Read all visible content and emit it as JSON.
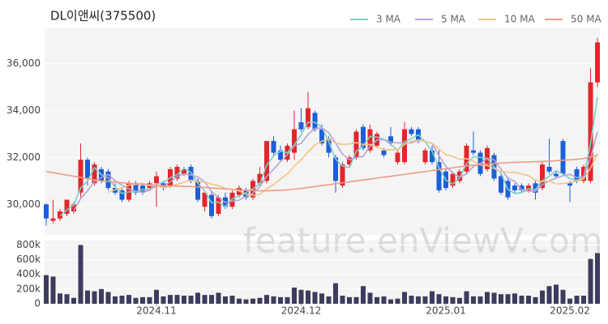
{
  "chart_data": [
    {
      "type": "candlestick",
      "title": "DL이앤씨(375500)",
      "watermark": "feature.enViewV.com",
      "up_color": "#e3262c",
      "down_color": "#1c5fd8",
      "open": [
        30000,
        29300,
        29400,
        29600,
        29700,
        30500,
        31900,
        30900,
        31500,
        31400,
        30700,
        30600,
        30200,
        30900,
        30800,
        30700,
        30900,
        30900,
        30800,
        31100,
        31300,
        31600,
        31000,
        29900,
        30400,
        29600,
        30300,
        29900,
        30400,
        30600,
        30300,
        30900,
        31000,
        32700,
        32300,
        31900,
        32200,
        33500,
        33300,
        33900,
        33200,
        32800,
        32000,
        30800,
        31700,
        32000,
        33300,
        32300,
        32500,
        32300,
        32900,
        31800,
        31800,
        33200,
        33200,
        31800,
        32300,
        31800,
        31400,
        30800,
        31000,
        31400,
        32300,
        32200,
        31500,
        32100,
        31200,
        31000,
        30800,
        30800,
        30600,
        30900,
        30700,
        31600,
        31300,
        32700,
        30900,
        31500,
        31000,
        31000,
        35200
      ],
      "high": [
        30050,
        30200,
        29800,
        30200,
        30100,
        32600,
        32000,
        31800,
        31600,
        31500,
        30900,
        30700,
        31000,
        31000,
        30900,
        31000,
        31400,
        31000,
        31600,
        31700,
        31600,
        31700,
        31100,
        30500,
        30600,
        30400,
        30500,
        30600,
        30800,
        30700,
        31100,
        31600,
        32700,
        32900,
        32500,
        32600,
        34000,
        34100,
        34800,
        34000,
        33400,
        32900,
        32100,
        31800,
        32100,
        33200,
        33400,
        33400,
        33100,
        32400,
        33300,
        32300,
        33500,
        33300,
        33300,
        32400,
        32500,
        32300,
        31500,
        31400,
        31500,
        32600,
        33100,
        32300,
        32500,
        32200,
        31300,
        31100,
        30900,
        30900,
        30900,
        31000,
        31800,
        32800,
        31400,
        32800,
        31000,
        31600,
        31700,
        35800,
        37100
      ],
      "low": [
        29100,
        29200,
        29300,
        29500,
        29600,
        30300,
        30800,
        30800,
        30900,
        30600,
        30400,
        30100,
        30100,
        30400,
        30400,
        30600,
        29900,
        30600,
        30700,
        31000,
        31200,
        30900,
        30100,
        29700,
        29400,
        29500,
        29800,
        29800,
        30300,
        30200,
        30200,
        30800,
        30900,
        32100,
        31800,
        31800,
        31900,
        33100,
        33200,
        33100,
        32500,
        32000,
        30500,
        30700,
        31600,
        31900,
        32300,
        32200,
        32400,
        32000,
        32500,
        31700,
        31700,
        32900,
        32600,
        31700,
        31700,
        30500,
        30600,
        30700,
        30900,
        31300,
        32100,
        31200,
        31400,
        31000,
        30400,
        30200,
        30500,
        30500,
        30500,
        30200,
        30600,
        31300,
        31100,
        31200,
        30100,
        30900,
        30900,
        30900,
        35000
      ],
      "close": [
        29400,
        29400,
        29700,
        30200,
        30000,
        31900,
        31100,
        31700,
        31000,
        30700,
        30500,
        30200,
        30900,
        30500,
        30500,
        30900,
        31200,
        30700,
        31500,
        31600,
        31500,
        31000,
        30200,
        30500,
        29500,
        30300,
        29900,
        30500,
        30700,
        30300,
        31000,
        31300,
        32700,
        32200,
        31900,
        32500,
        33200,
        33200,
        34100,
        33200,
        32600,
        32200,
        31000,
        31700,
        32000,
        33100,
        32400,
        33200,
        33000,
        32100,
        32600,
        32200,
        33200,
        33000,
        32700,
        32300,
        31800,
        30600,
        30700,
        31300,
        31400,
        32500,
        32200,
        31300,
        32400,
        31100,
        30500,
        30300,
        30600,
        30600,
        30800,
        30500,
        31700,
        31400,
        31200,
        31300,
        30800,
        31000,
        31600,
        35200,
        36900
      ],
      "series": [
        {
          "name": "3 MA",
          "color": "#7dcfc6",
          "values": [
            null,
            null,
            29500,
            29767,
            29967,
            30700,
            31000,
            31567,
            31267,
            31133,
            30733,
            30467,
            30533,
            30533,
            30633,
            30633,
            30867,
            30933,
            31133,
            31267,
            31533,
            31367,
            30900,
            30567,
            30067,
            30100,
            29900,
            30233,
            30367,
            30500,
            30667,
            30867,
            31667,
            32067,
            32267,
            32200,
            32533,
            32967,
            33500,
            33500,
            33300,
            32667,
            31933,
            31633,
            31567,
            32267,
            32500,
            32900,
            32867,
            32767,
            32567,
            32300,
            32667,
            32800,
            32967,
            32667,
            32267,
            31567,
            31033,
            30867,
            31133,
            31733,
            32033,
            32000,
            31967,
            31600,
            31333,
            30633,
            30467,
            30500,
            30667,
            30633,
            31000,
            31200,
            31433,
            31300,
            31100,
            31033,
            31133,
            32600,
            34567
          ]
        },
        {
          "name": "5 MA",
          "color": "#b8a2d6",
          "values": [
            null,
            null,
            null,
            null,
            29740,
            30240,
            30580,
            30980,
            31140,
            31280,
            31000,
            30820,
            30660,
            30560,
            30520,
            30600,
            30800,
            30760,
            30960,
            31180,
            31300,
            31260,
            31160,
            30960,
            30540,
            30300,
            30080,
            30140,
            30180,
            30340,
            30480,
            30760,
            31200,
            31500,
            31820,
            32120,
            32500,
            32600,
            32980,
            33240,
            33260,
            33060,
            32620,
            32140,
            31900,
            32000,
            32040,
            32480,
            32740,
            32760,
            32660,
            32620,
            32620,
            32620,
            32740,
            32680,
            32600,
            32080,
            31620,
            31340,
            31160,
            31300,
            31620,
            31740,
            31960,
            31900,
            31500,
            31120,
            30980,
            30620,
            30560,
            30560,
            30840,
            31000,
            31120,
            31220,
            31280,
            31140,
            31180,
            31980,
            33100
          ]
        },
        {
          "name": "10 MA",
          "color": "#f3c484",
          "values": [
            null,
            null,
            null,
            null,
            null,
            null,
            null,
            null,
            null,
            30510,
            30620,
            30700,
            30820,
            30850,
            30900,
            30800,
            30810,
            30710,
            30760,
            30850,
            30950,
            31030,
            30960,
            30960,
            30860,
            30800,
            30670,
            30650,
            30570,
            30440,
            30390,
            30420,
            30670,
            30840,
            31080,
            31300,
            31630,
            31900,
            32240,
            32530,
            32690,
            32780,
            32610,
            32560,
            32570,
            32630,
            32550,
            32550,
            32440,
            32330,
            32330,
            32330,
            32550,
            32680,
            32750,
            32670,
            32610,
            32350,
            32120,
            32040,
            31920,
            31950,
            31850,
            31680,
            31650,
            31530,
            31400,
            31370,
            31360,
            31290,
            31230,
            31030,
            30980,
            30990,
            30870,
            30890,
            30920,
            30990,
            31090,
            31550,
            32160
          ]
        },
        {
          "name": "50 MA",
          "color": "#f29a86",
          "values": [
            31400,
            31350,
            31300,
            31250,
            31200,
            31150,
            31100,
            31050,
            31000,
            30980,
            30950,
            30920,
            30900,
            30880,
            30860,
            30840,
            30820,
            30800,
            30790,
            30780,
            30770,
            30760,
            30740,
            30720,
            30700,
            30680,
            30660,
            30640,
            30620,
            30600,
            30590,
            30580,
            30580,
            30590,
            30600,
            30620,
            30650,
            30680,
            30720,
            30760,
            30800,
            30840,
            30880,
            30920,
            30960,
            31000,
            31040,
            31080,
            31120,
            31160,
            31200,
            31240,
            31280,
            31320,
            31360,
            31400,
            31440,
            31480,
            31520,
            31560,
            31600,
            31640,
            31670,
            31700,
            31720,
            31740,
            31760,
            31780,
            31790,
            31800,
            31810,
            31820,
            31830,
            31840,
            31860,
            31880,
            31900,
            31920,
            31960,
            32020,
            32100
          ]
        }
      ],
      "ylim": [
        28700,
        37500
      ],
      "yticks": [
        {
          "value": 30000,
          "label": "30,000"
        },
        {
          "value": 32000,
          "label": "32,000"
        },
        {
          "value": 34000,
          "label": "34,000"
        },
        {
          "value": 36000,
          "label": "36,000"
        }
      ],
      "grid": true
    },
    {
      "type": "bar",
      "color": "#3d3c5e",
      "values": [
        390000,
        370000,
        140000,
        130000,
        80000,
        800000,
        180000,
        170000,
        200000,
        160000,
        100000,
        110000,
        120000,
        80000,
        90000,
        90000,
        190000,
        100000,
        120000,
        120000,
        110000,
        110000,
        150000,
        120000,
        120000,
        150000,
        100000,
        110000,
        70000,
        60000,
        70000,
        80000,
        120000,
        100000,
        90000,
        90000,
        220000,
        190000,
        180000,
        160000,
        140000,
        100000,
        280000,
        110000,
        90000,
        90000,
        240000,
        150000,
        90000,
        100000,
        60000,
        70000,
        160000,
        110000,
        100000,
        100000,
        170000,
        130000,
        100000,
        90000,
        80000,
        170000,
        100000,
        100000,
        160000,
        150000,
        130000,
        130000,
        140000,
        110000,
        110000,
        90000,
        180000,
        240000,
        260000,
        190000,
        70000,
        110000,
        110000,
        610000,
        690000
      ],
      "ylim": [
        0,
        860000
      ],
      "yticks": [
        0,
        {
          "value": 200000,
          "label": "200k"
        },
        {
          "value": 400000,
          "label": "400k"
        },
        {
          "value": 600000,
          "label": "600k"
        },
        {
          "value": 800000,
          "label": "800k"
        }
      ],
      "xticks": [
        {
          "value": 16,
          "label": "2024.11"
        },
        {
          "value": 37,
          "label": "2024.12"
        },
        {
          "value": 58,
          "label": "2025.01"
        },
        {
          "value": 76,
          "label": "2025.02"
        }
      ],
      "grid": true
    }
  ]
}
